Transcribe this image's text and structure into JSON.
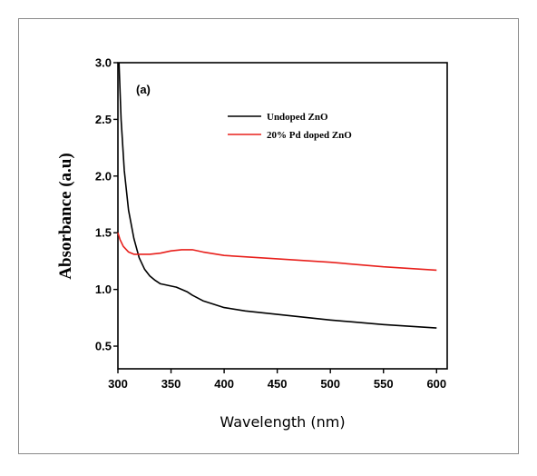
{
  "chart_data": {
    "type": "line",
    "title": "",
    "annotation": "(a)",
    "xlabel": "Wavelength (nm)",
    "ylabel": "Absorbance (a.u)",
    "xlim": [
      300,
      610
    ],
    "ylim": [
      0.3,
      3.0
    ],
    "xticks": [
      300,
      350,
      400,
      450,
      500,
      550,
      600
    ],
    "yticks": [
      0.5,
      1.0,
      1.5,
      2.0,
      2.5,
      3.0
    ],
    "xtick_labels": [
      "300",
      "350",
      "400",
      "450",
      "500",
      "550",
      "600"
    ],
    "ytick_labels": [
      "0.5",
      "1.0",
      "1.5",
      "2.0",
      "2.5",
      "3.0"
    ],
    "grid": false,
    "legend_position": "top-right",
    "series": [
      {
        "name": "Undoped ZnO",
        "color": "#000000",
        "x": [
          301,
          303,
          306,
          310,
          315,
          320,
          325,
          330,
          335,
          340,
          345,
          350,
          355,
          360,
          365,
          370,
          380,
          390,
          400,
          420,
          450,
          500,
          550,
          600
        ],
        "y": [
          3.0,
          2.5,
          2.05,
          1.7,
          1.45,
          1.28,
          1.18,
          1.12,
          1.08,
          1.05,
          1.04,
          1.03,
          1.02,
          1.0,
          0.98,
          0.95,
          0.9,
          0.87,
          0.84,
          0.81,
          0.78,
          0.73,
          0.69,
          0.66
        ]
      },
      {
        "name": "20% Pd doped ZnO",
        "color": "#e8201c",
        "x": [
          300,
          302,
          305,
          310,
          315,
          320,
          330,
          340,
          350,
          360,
          370,
          380,
          400,
          450,
          500,
          550,
          600
        ],
        "y": [
          1.5,
          1.44,
          1.38,
          1.33,
          1.31,
          1.31,
          1.31,
          1.32,
          1.34,
          1.35,
          1.35,
          1.33,
          1.3,
          1.27,
          1.24,
          1.2,
          1.17
        ]
      }
    ]
  }
}
